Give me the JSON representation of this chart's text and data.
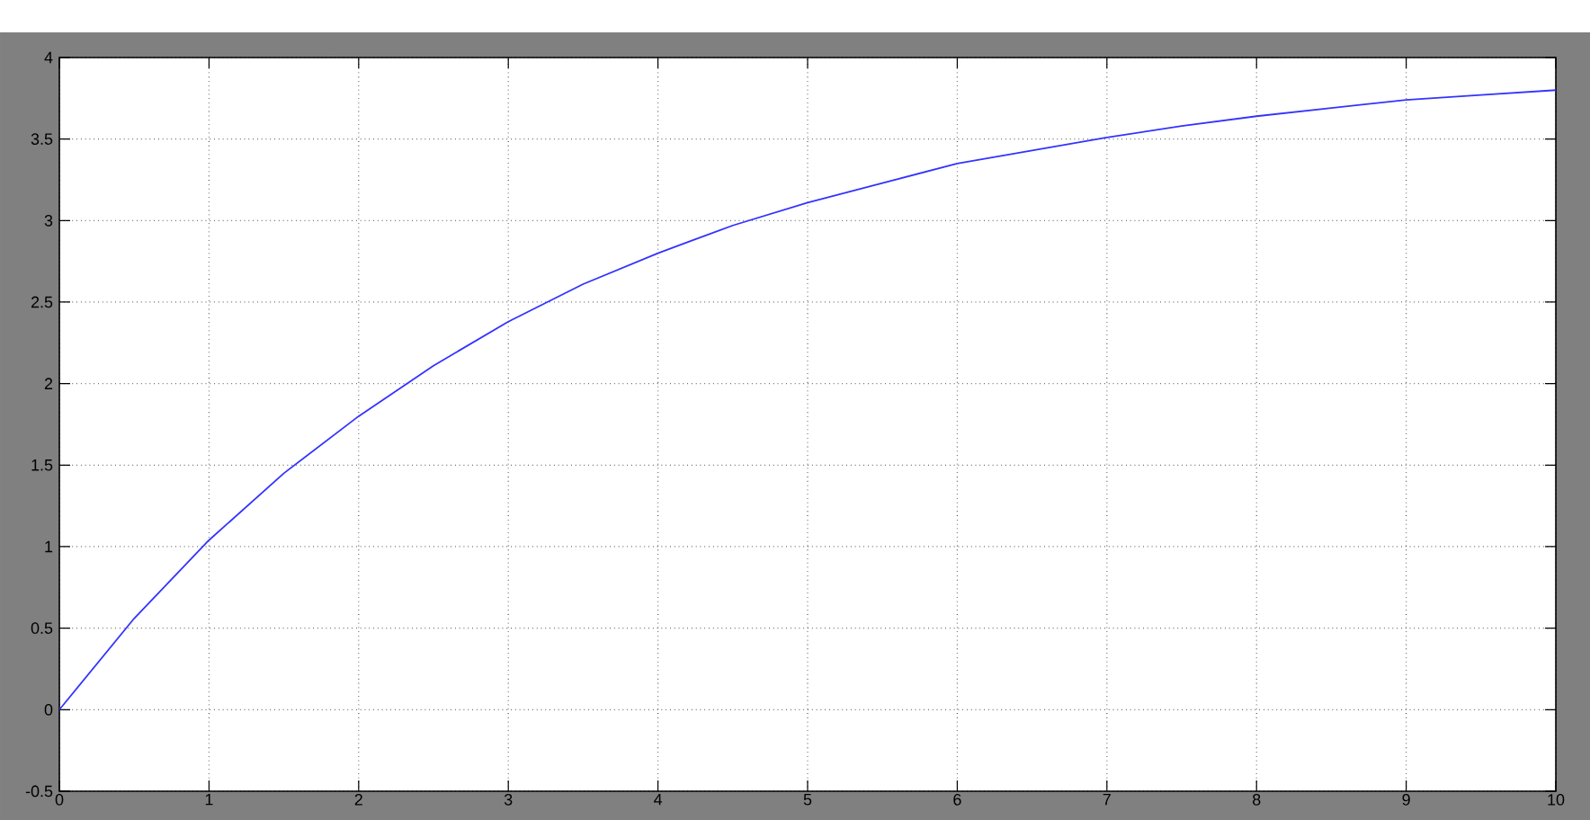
{
  "chart_data": {
    "type": "line",
    "x": [
      0,
      0.5,
      1,
      1.5,
      2,
      2.5,
      3,
      3.5,
      4,
      4.5,
      5,
      5.5,
      6,
      6.5,
      7,
      7.5,
      8,
      8.5,
      9,
      9.5,
      10
    ],
    "values": [
      0,
      0.56,
      1.04,
      1.45,
      1.8,
      2.11,
      2.38,
      2.61,
      2.8,
      2.97,
      3.11,
      3.23,
      3.35,
      3.43,
      3.51,
      3.58,
      3.64,
      3.69,
      3.74,
      3.77,
      3.8
    ],
    "color": "#3333ff",
    "xlim": [
      0,
      10
    ],
    "ylim": [
      -0.5,
      4
    ],
    "xticks": [
      0,
      1,
      2,
      3,
      4,
      5,
      6,
      7,
      8,
      9,
      10
    ],
    "yticks": [
      -0.5,
      0,
      0.5,
      1,
      1.5,
      2,
      2.5,
      3,
      3.5,
      4
    ],
    "grid": true
  }
}
